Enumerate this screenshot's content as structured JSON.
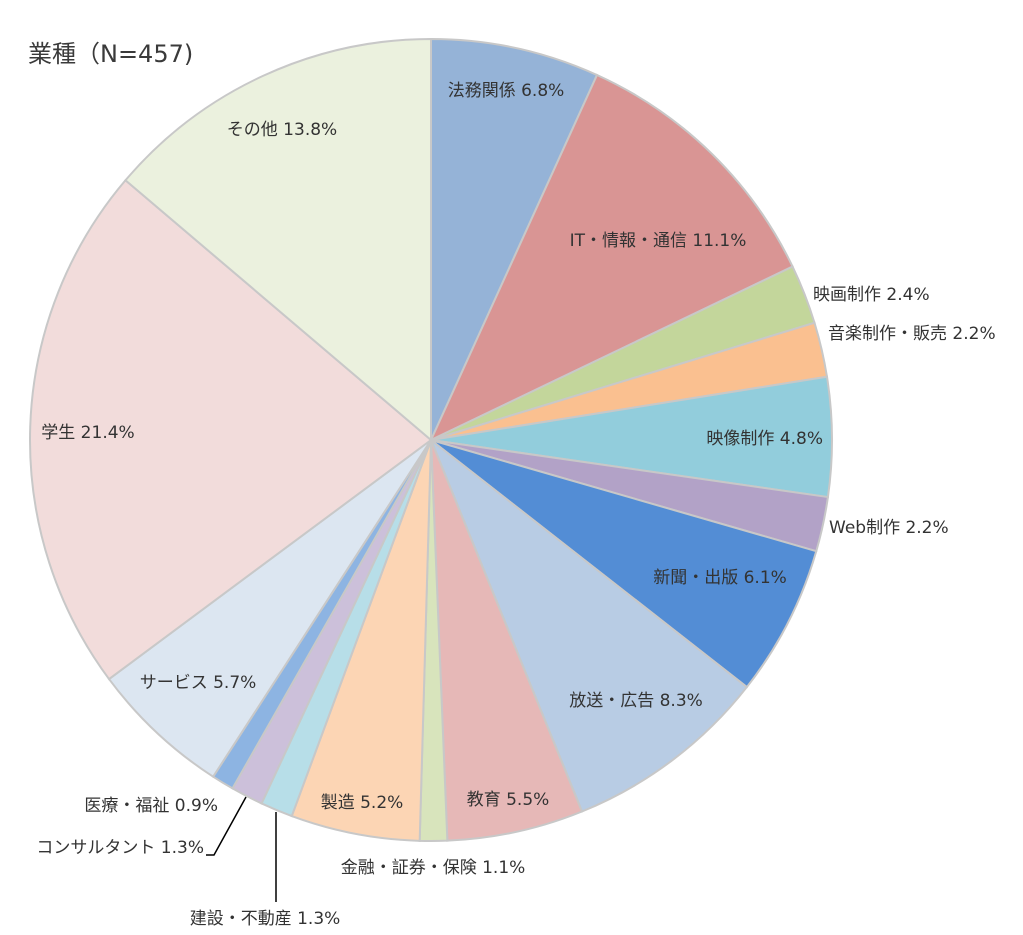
{
  "chart_data": {
    "type": "pie",
    "title": "業種（N=457)",
    "start_angle_deg": 0,
    "direction": "clockwise",
    "slices": [
      {
        "label": "法務関係",
        "value": 6.8,
        "display": "法務関係 6.8%",
        "color": "#95b3d7"
      },
      {
        "label": "IT・情報・通信",
        "value": 11.1,
        "display": "IT・情報・通信 11.1%",
        "color": "#d99594"
      },
      {
        "label": "映画制作",
        "value": 2.4,
        "display": "映画制作 2.4%",
        "color": "#c3d69b"
      },
      {
        "label": "音楽制作・販売",
        "value": 2.2,
        "display": "音楽制作・販売 2.2%",
        "color": "#fac090"
      },
      {
        "label": "映像制作",
        "value": 4.8,
        "display": "映像制作 4.8%",
        "color": "#92cddc"
      },
      {
        "label": "Web制作",
        "value": 2.2,
        "display": "Web制作 2.2%",
        "color": "#b2a2c7"
      },
      {
        "label": "新聞・出版",
        "value": 6.1,
        "display": "新聞・出版 6.1%",
        "color": "#538dd5"
      },
      {
        "label": "放送・広告",
        "value": 8.3,
        "display": "放送・広告 8.3%",
        "color": "#b8cce4"
      },
      {
        "label": "教育",
        "value": 5.5,
        "display": "教育 5.5%",
        "color": "#e6b8b7"
      },
      {
        "label": "金融・証券・保険",
        "value": 1.1,
        "display": "金融・証券・保険 1.1%",
        "color": "#d8e4bc"
      },
      {
        "label": "製造",
        "value": 5.2,
        "display": "製造 5.2%",
        "color": "#fcd5b4"
      },
      {
        "label": "建設・不動産",
        "value": 1.3,
        "display": "建設・不動産 1.3%",
        "color": "#b7dee8"
      },
      {
        "label": "コンサルタント",
        "value": 1.3,
        "display": "コンサルタント 1.3%",
        "color": "#ccc0da"
      },
      {
        "label": "医療・福祉",
        "value": 0.9,
        "display": "医療・福祉 0.9%",
        "color": "#8db4e2"
      },
      {
        "label": "サービス",
        "value": 5.7,
        "display": "サービス 5.7%",
        "color": "#dce6f1"
      },
      {
        "label": "学生",
        "value": 21.4,
        "display": "学生 21.4%",
        "color": "#f2dcdb"
      },
      {
        "label": "その他",
        "value": 13.8,
        "display": "その他 13.8%",
        "color": "#ebf1de"
      }
    ]
  }
}
